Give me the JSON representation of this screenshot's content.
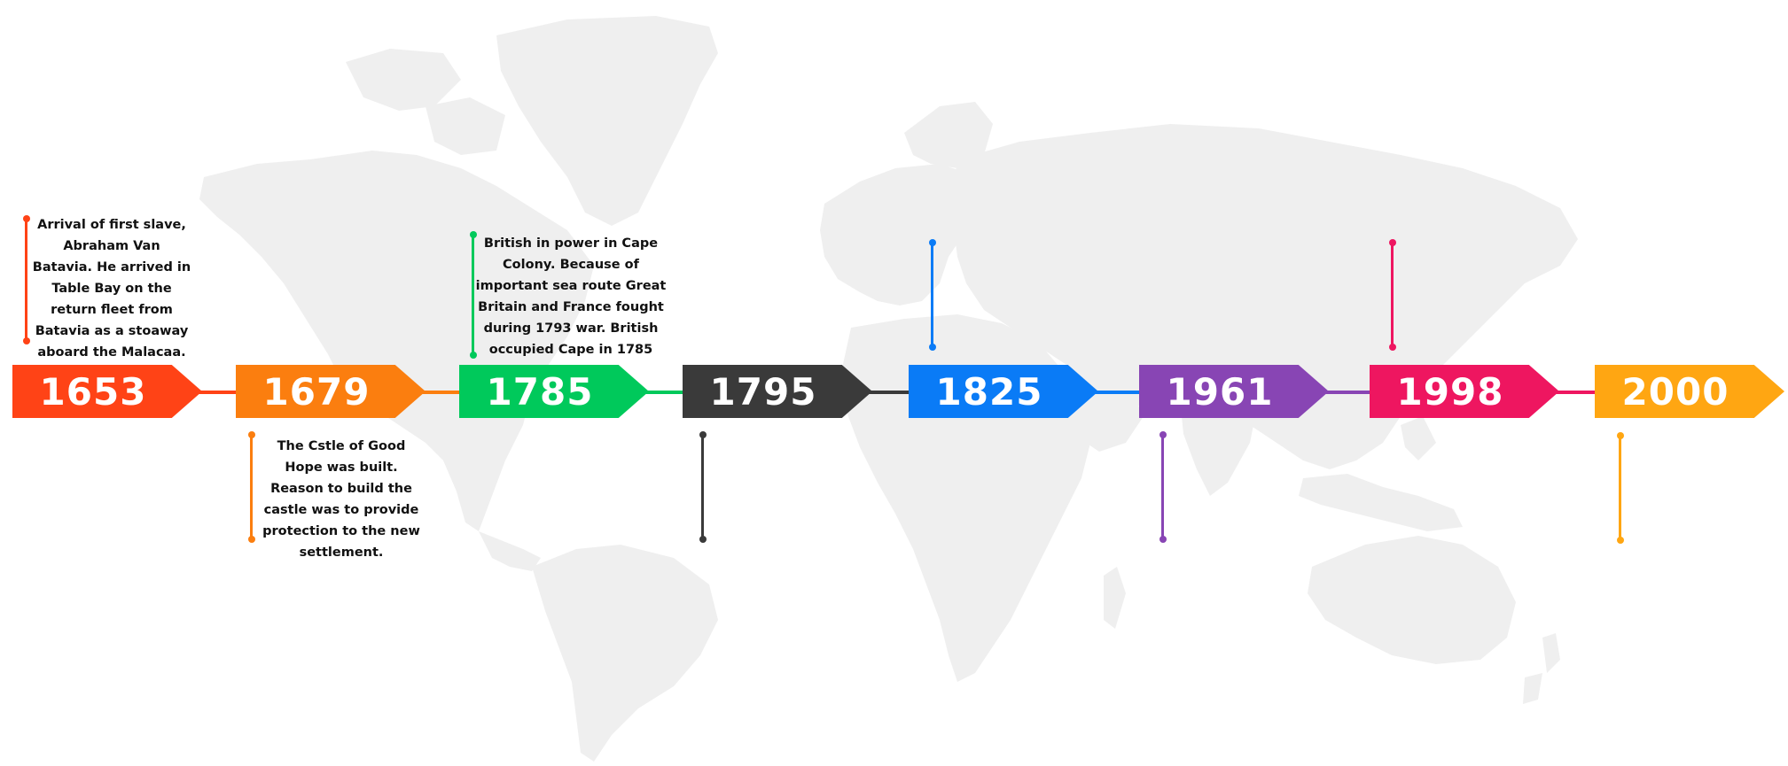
{
  "timeline": {
    "events": [
      {
        "year": "1653",
        "color": "#ff4316",
        "note": "Arrival of first slave, Abraham Van Batavia. He arrived in Table Bay on the return fleet from Batavia as a stoaway aboard the Malacaa."
      },
      {
        "year": "1679",
        "color": "#fb7e0f",
        "note": "The Cstle of Good Hope was built. Reason to build the castle was to provide protection to the new settlement."
      },
      {
        "year": "1785",
        "color": "#00c95b",
        "note": "British in power in Cape Colony. Because of important sea route Great Britain and France fought during 1793 war. British occupied Cape in 1785"
      },
      {
        "year": "1795",
        "color": "#3a3a3a",
        "note": ""
      },
      {
        "year": "1825",
        "color": "#0a7bf6",
        "note": ""
      },
      {
        "year": "1961",
        "color": "#8845b4",
        "note": ""
      },
      {
        "year": "1998",
        "color": "#ee1660",
        "note": ""
      },
      {
        "year": "2000",
        "color": "#ffa612",
        "note": ""
      }
    ]
  }
}
